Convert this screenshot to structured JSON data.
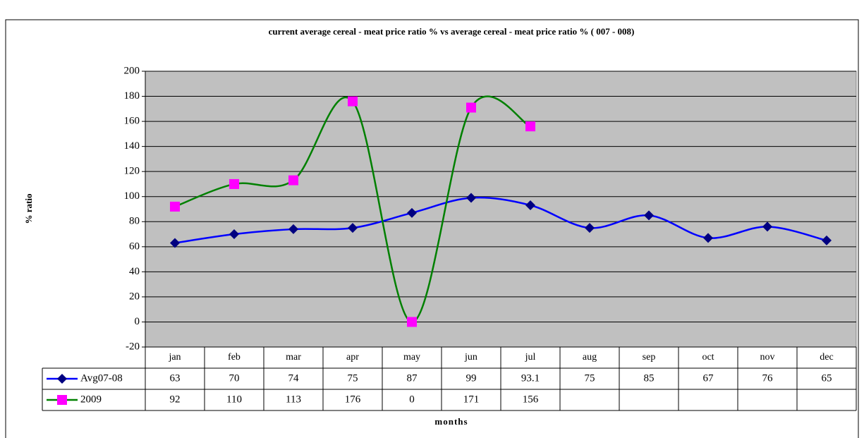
{
  "chart_data": {
    "type": "line",
    "title": "current average cereal - meat price ratio % vs average cereal - meat price ratio % ( 007 - 008)",
    "x_label": "months",
    "y_label": "% ratio",
    "categories": [
      "jan",
      "feb",
      "mar",
      "apr",
      "may",
      "jun",
      "jul",
      "aug",
      "sep",
      "oct",
      "nov",
      "dec"
    ],
    "series": [
      {
        "name": "Avg07-08",
        "color": "#0000ff",
        "marker_color": "#000080",
        "marker": "diamond",
        "values": [
          63,
          70,
          74,
          75,
          87,
          99,
          93.1,
          75,
          85,
          67,
          76,
          65
        ]
      },
      {
        "name": "2009",
        "color": "#008000",
        "marker_color": "#ff00ff",
        "marker": "square",
        "values": [
          92,
          110,
          113,
          176,
          0,
          171,
          156,
          null,
          null,
          null,
          null,
          null
        ]
      }
    ],
    "ylim": [
      -20,
      200
    ],
    "yticks": [
      -20,
      0,
      20,
      40,
      60,
      80,
      100,
      120,
      140,
      160,
      180,
      200
    ],
    "grid": true,
    "smooth": true,
    "data_table": true
  }
}
